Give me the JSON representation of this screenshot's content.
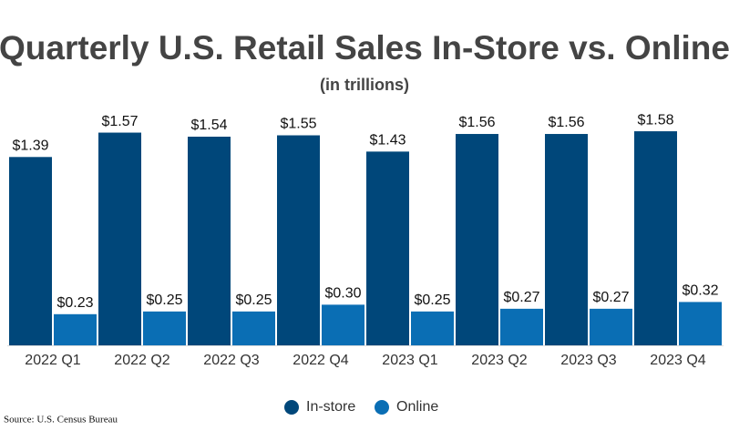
{
  "chart_data": {
    "type": "bar",
    "title": "Quarterly U.S. Retail Sales In-Store vs. Online",
    "subtitle": "(in trillions)",
    "categories": [
      "2022 Q1",
      "2022 Q2",
      "2022 Q3",
      "2022 Q4",
      "2023 Q1",
      "2023 Q2",
      "2023 Q3",
      "2023 Q4"
    ],
    "series": [
      {
        "name": "In-store",
        "color": "#00477a",
        "values": [
          1.39,
          1.57,
          1.54,
          1.55,
          1.43,
          1.56,
          1.56,
          1.58
        ],
        "value_labels": [
          "$1.39",
          "$1.57",
          "$1.54",
          "$1.55",
          "$1.43",
          "$1.56",
          "$1.56",
          "$1.58"
        ]
      },
      {
        "name": "Online",
        "color": "#0a6eb4",
        "values": [
          0.23,
          0.25,
          0.25,
          0.3,
          0.25,
          0.27,
          0.27,
          0.32
        ],
        "value_labels": [
          "$0.23",
          "$0.25",
          "$0.25",
          "$0.30",
          "$0.25",
          "$0.27",
          "$0.27",
          "$0.32"
        ]
      }
    ],
    "legend": "bottom",
    "source": "Source: U.S. Census Bureau"
  }
}
